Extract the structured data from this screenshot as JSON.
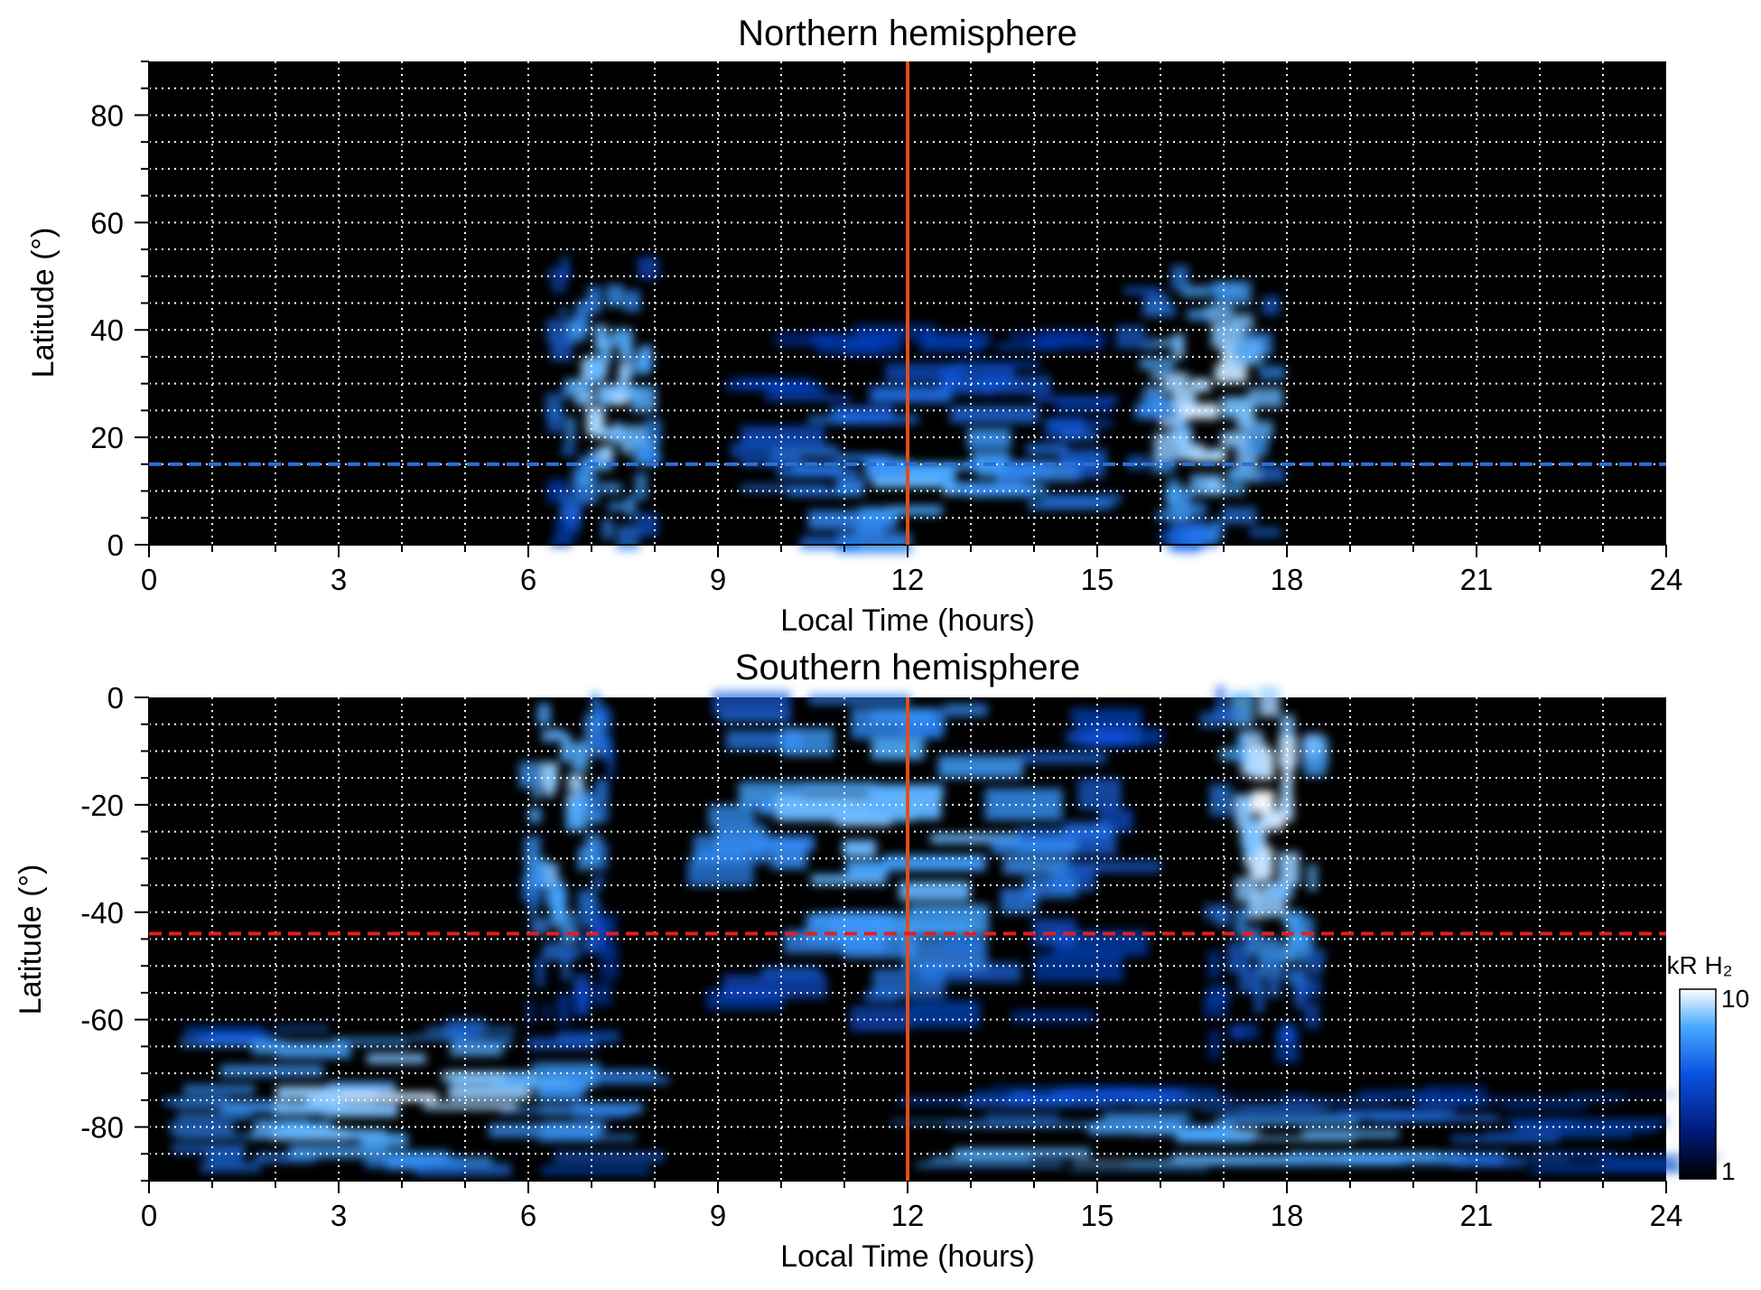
{
  "chart_data": [
    {
      "type": "heatmap",
      "title": "Northern hemisphere",
      "xlabel": "Local Time (hours)",
      "ylabel": "Latitude (°)",
      "xlim": [
        0,
        24
      ],
      "ylim": [
        0,
        90
      ],
      "xticks": [
        "0",
        "3",
        "6",
        "9",
        "12",
        "15",
        "18",
        "21",
        "24"
      ],
      "yticks": [
        "0",
        "20",
        "40",
        "60",
        "80"
      ],
      "grid": true,
      "reference_lines": [
        {
          "orientation": "vertical",
          "value": 12,
          "color": "#e04e1a",
          "style": "solid"
        },
        {
          "orientation": "horizontal",
          "value": 15,
          "color": "#2a6fd6",
          "style": "dashed"
        }
      ],
      "emission_regions": [
        {
          "lt": [
            6.4,
            8.0
          ],
          "lat": [
            0,
            52
          ],
          "peak_lt": 7.3,
          "peak_lat": 28,
          "intensity": 8
        },
        {
          "lt": [
            9.5,
            15.0
          ],
          "lat": [
            0,
            40
          ],
          "peak_lt": 12.4,
          "peak_lat": 11,
          "intensity": 5
        },
        {
          "lt": [
            15.5,
            17.8
          ],
          "lat": [
            0,
            50
          ],
          "peak_lt": 16.8,
          "peak_lat": 27,
          "intensity": 9
        }
      ]
    },
    {
      "type": "heatmap",
      "title": "Southern hemisphere",
      "xlabel": "Local Time (hours)",
      "ylabel": "Latitude (°)",
      "xlim": [
        0,
        24
      ],
      "ylim": [
        -90,
        0
      ],
      "xticks": [
        "0",
        "3",
        "6",
        "9",
        "12",
        "15",
        "18",
        "21",
        "24"
      ],
      "yticks": [
        "0",
        "-20",
        "-40",
        "-60",
        "-80"
      ],
      "grid": true,
      "reference_lines": [
        {
          "orientation": "vertical",
          "value": 12,
          "color": "#e04e1a",
          "style": "solid"
        },
        {
          "orientation": "horizontal",
          "value": -44,
          "color": "#e02020",
          "style": "dashed"
        }
      ],
      "emission_regions": [
        {
          "lt": [
            6.0,
            7.3
          ],
          "lat": [
            -60,
            0
          ],
          "peak_lt": 6.5,
          "peak_lat": -18,
          "intensity": 8
        },
        {
          "lt": [
            9.0,
            15.5
          ],
          "lat": [
            -60,
            0
          ],
          "peak_lt": 11.8,
          "peak_lat": -25,
          "intensity": 6
        },
        {
          "lt": [
            16.8,
            18.5
          ],
          "lat": [
            -65,
            0
          ],
          "peak_lt": 17.8,
          "peak_lat": -20,
          "intensity": 10
        },
        {
          "lt": [
            0.5,
            7.5
          ],
          "lat": [
            -88,
            -60
          ],
          "peak_lt": 4.0,
          "peak_lat": -75,
          "intensity": 8
        },
        {
          "lt": [
            13.0,
            23.8
          ],
          "lat": [
            -88,
            -72
          ],
          "peak_lt": 16.0,
          "peak_lat": -84,
          "intensity": 7
        }
      ],
      "colorbar": {
        "label": "kR H₂",
        "min_label": "1",
        "max_label": "10",
        "min": 1,
        "max": 10,
        "scale": "log",
        "colors": [
          "#000000",
          "#001a7a",
          "#0a52e0",
          "#47a8ff",
          "#ffffff"
        ]
      }
    }
  ]
}
